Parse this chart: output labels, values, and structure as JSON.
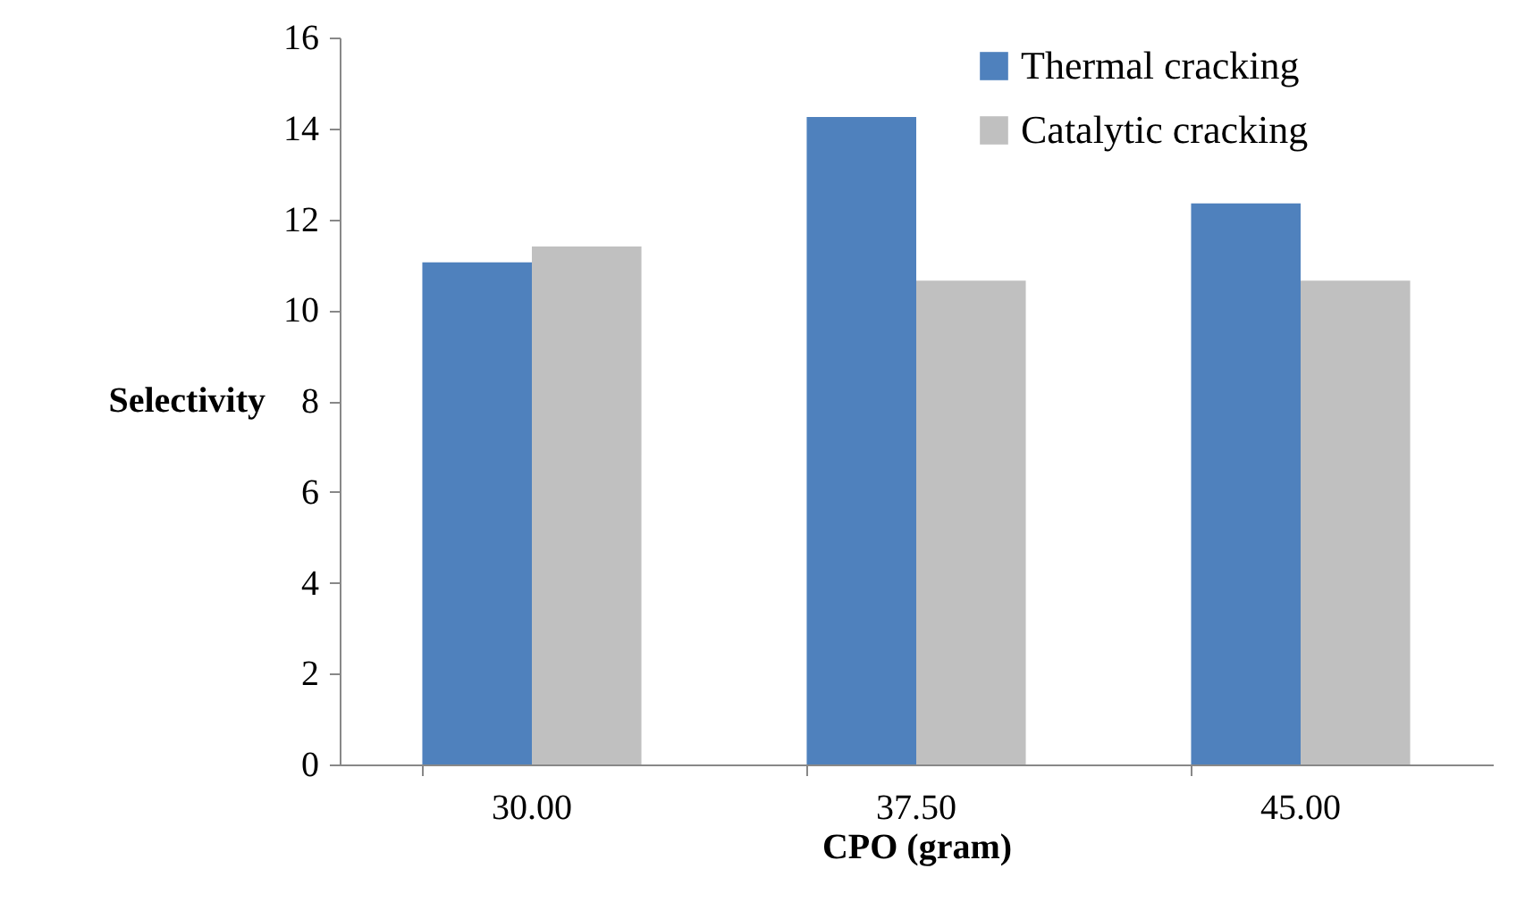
{
  "chart_data": {
    "type": "bar",
    "xlabel": "CPO (gram)",
    "ylabel": "Selectivity",
    "categories": [
      "30.00",
      "37.50",
      "45.00"
    ],
    "series": [
      {
        "name": "Thermal cracking",
        "color": "#4f81bd",
        "values": [
          11.05,
          14.25,
          12.35
        ]
      },
      {
        "name": "Catalytic cracking",
        "color": "#c0c0c0",
        "values": [
          11.4,
          10.65,
          10.65
        ]
      }
    ],
    "ylim": [
      0,
      16
    ],
    "yticks": [
      0,
      2,
      4,
      6,
      8,
      10,
      12,
      14,
      16
    ],
    "grid": false,
    "legend": "top right"
  }
}
